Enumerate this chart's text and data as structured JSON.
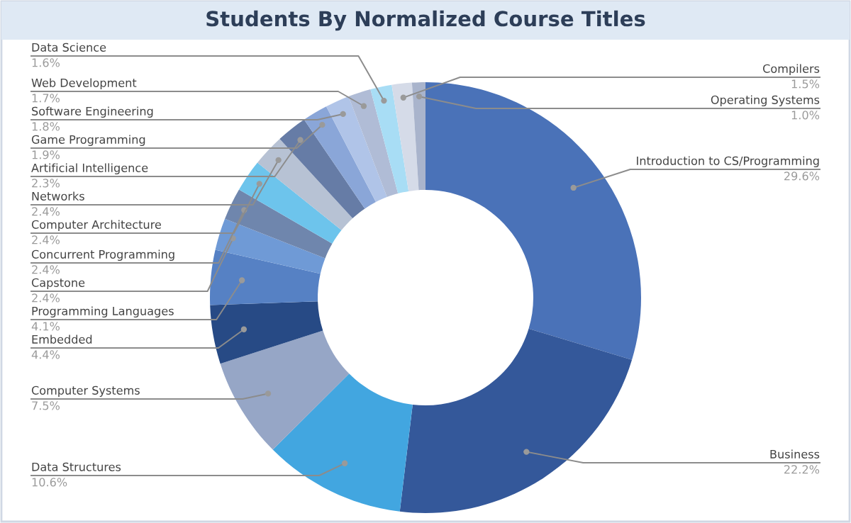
{
  "chart_data": {
    "type": "donut",
    "title": "Students By Normalized Course Titles",
    "categories": [
      "Introduction to CS/Programming",
      "Business",
      "Data Structures",
      "Computer Systems",
      "Embedded",
      "Programming Languages",
      "Capstone",
      "Concurrent Programming",
      "Computer Architecture",
      "Networks",
      "Artificial Intelligence",
      "Game Programming",
      "Software Engineering",
      "Web Development",
      "Data Science",
      "Compilers",
      "Operating Systems"
    ],
    "values": [
      29.6,
      22.2,
      10.6,
      7.5,
      4.4,
      4.1,
      2.4,
      2.4,
      2.4,
      2.4,
      2.3,
      1.9,
      1.8,
      1.7,
      1.6,
      1.5,
      1.0
    ],
    "value_labels": [
      "29.6%",
      "22.2%",
      "10.6%",
      "7.5%",
      "4.4%",
      "4.1%",
      "2.4%",
      "2.4%",
      "2.4%",
      "2.4%",
      "2.3%",
      "1.9%",
      "1.8%",
      "1.7%",
      "1.6%",
      "1.5%",
      "1.0%"
    ],
    "colors": [
      "#4a72b8",
      "#34589a",
      "#42a6e0",
      "#96a6c6",
      "#274a85",
      "#5681c4",
      "#6f9ad6",
      "#6f86ad",
      "#6dc4ec",
      "#b7c2d4",
      "#667ca6",
      "#8aa6d8",
      "#b0c4e8",
      "#b0bcd6",
      "#a8ddf5",
      "#d5dbe8",
      "#a9b4cc"
    ],
    "legend": false
  }
}
